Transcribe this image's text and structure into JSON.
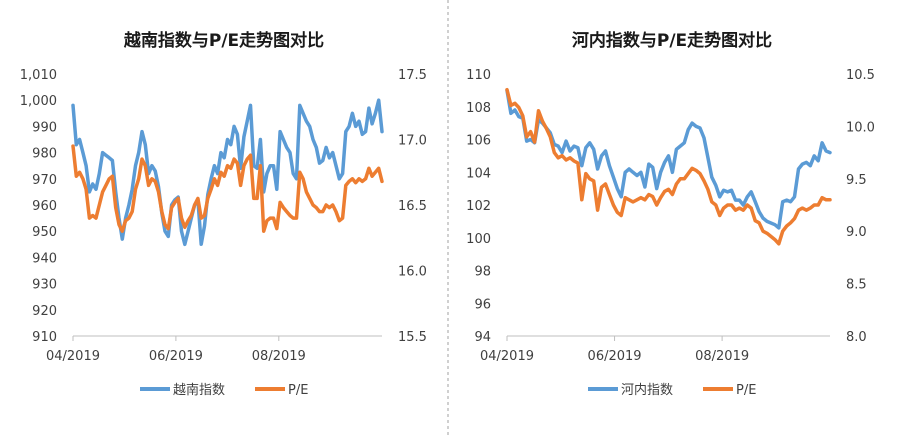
{
  "chart_data": [
    {
      "type": "line",
      "title": "越南指数与P/E走势图对比",
      "x_ticks": [
        "04/2019",
        "06/2019",
        "08/2019"
      ],
      "y_left": {
        "min": 910,
        "max": 1010,
        "step": 10,
        "ticks": [
          "910",
          "920",
          "930",
          "940",
          "950",
          "960",
          "970",
          "980",
          "990",
          "1,000",
          "1,010"
        ]
      },
      "y_right": {
        "min": 15.5,
        "max": 17.5,
        "step": 0.5,
        "ticks": [
          "15.5",
          "16.0",
          "16.5",
          "17.0",
          "17.5"
        ]
      },
      "legend_position": "bottom",
      "series": [
        {
          "name": "越南指数",
          "axis": "left",
          "color": "#5B9BD5",
          "values": [
            998,
            983,
            985,
            980,
            975,
            965,
            968,
            966,
            972,
            980,
            979,
            978,
            977,
            965,
            955,
            947,
            955,
            960,
            966,
            975,
            980,
            988,
            983,
            972,
            975,
            973,
            967,
            957,
            950,
            948,
            960,
            962,
            963,
            950,
            945,
            950,
            955,
            960,
            962,
            945,
            952,
            964,
            970,
            975,
            972,
            980,
            978,
            985,
            983,
            990,
            987,
            974,
            986,
            992,
            998,
            975,
            974,
            985,
            965,
            972,
            975,
            975,
            966,
            988,
            985,
            982,
            980,
            972,
            970,
            998,
            995,
            992,
            990,
            985,
            982,
            976,
            977,
            982,
            978,
            980,
            975,
            970,
            972,
            988,
            990,
            995,
            990,
            992,
            987,
            988,
            997,
            991,
            995,
            1000,
            988
          ]
        },
        {
          "name": "P/E",
          "axis": "right",
          "color": "#ED7D31",
          "values": [
            16.95,
            16.72,
            16.75,
            16.7,
            16.62,
            16.4,
            16.42,
            16.4,
            16.5,
            16.6,
            16.65,
            16.7,
            16.72,
            16.48,
            16.35,
            16.3,
            16.38,
            16.4,
            16.45,
            16.62,
            16.7,
            16.85,
            16.8,
            16.65,
            16.7,
            16.68,
            16.6,
            16.45,
            16.35,
            16.32,
            16.48,
            16.52,
            16.55,
            16.4,
            16.33,
            16.38,
            16.42,
            16.5,
            16.55,
            16.4,
            16.42,
            16.55,
            16.62,
            16.7,
            16.65,
            16.75,
            16.72,
            16.8,
            16.78,
            16.85,
            16.82,
            16.65,
            16.8,
            16.85,
            16.88,
            16.55,
            16.55,
            16.8,
            16.3,
            16.38,
            16.4,
            16.4,
            16.32,
            16.52,
            16.48,
            16.45,
            16.42,
            16.4,
            16.4,
            16.75,
            16.7,
            16.6,
            16.55,
            16.5,
            16.48,
            16.45,
            16.45,
            16.5,
            16.48,
            16.5,
            16.45,
            16.38,
            16.4,
            16.65,
            16.68,
            16.7,
            16.67,
            16.7,
            16.68,
            16.7,
            16.78,
            16.72,
            16.75,
            16.78,
            16.68
          ]
        }
      ]
    },
    {
      "type": "line",
      "title": "河内指数与P/E走势图对比",
      "x_ticks": [
        "04/2019",
        "06/2019",
        "08/2019"
      ],
      "y_left": {
        "min": 94,
        "max": 110,
        "step": 2,
        "ticks": [
          "94",
          "96",
          "98",
          "100",
          "102",
          "104",
          "106",
          "108",
          "110"
        ]
      },
      "y_right": {
        "min": 8.0,
        "max": 10.5,
        "step": 0.5,
        "ticks": [
          "8.0",
          "8.5",
          "9.0",
          "9.5",
          "10.0",
          "10.5"
        ]
      },
      "legend_position": "bottom",
      "series": [
        {
          "name": "河内指数",
          "axis": "left",
          "color": "#5B9BD5",
          "values": [
            109.0,
            107.6,
            107.8,
            107.4,
            107.3,
            105.9,
            106.0,
            105.8,
            107.2,
            107.0,
            106.7,
            106.4,
            105.7,
            105.6,
            105.2,
            105.9,
            105.3,
            105.6,
            105.5,
            104.4,
            105.5,
            105.8,
            105.4,
            104.2,
            105.0,
            105.3,
            104.4,
            103.7,
            103.0,
            102.5,
            104.0,
            104.2,
            104.0,
            103.8,
            104.0,
            103.1,
            104.5,
            104.3,
            103.0,
            104.0,
            104.6,
            105.0,
            104.0,
            105.4,
            105.6,
            105.8,
            106.6,
            107.0,
            106.8,
            106.7,
            106.1,
            104.9,
            103.7,
            103.2,
            102.5,
            102.9,
            102.8,
            102.9,
            102.3,
            102.3,
            102.0,
            102.5,
            102.8,
            102.2,
            101.6,
            101.2,
            101.0,
            100.9,
            100.8,
            100.6,
            102.2,
            102.3,
            102.2,
            102.5,
            104.2,
            104.5,
            104.6,
            104.4,
            105.0,
            104.7,
            105.8,
            105.3,
            105.2
          ],
          "x_end": 1.0
        },
        {
          "name": "P/E",
          "axis": "right",
          "color": "#ED7D31",
          "values": [
            10.35,
            10.2,
            10.22,
            10.18,
            10.1,
            9.9,
            9.95,
            9.85,
            10.15,
            10.05,
            9.98,
            9.9,
            9.75,
            9.7,
            9.72,
            9.68,
            9.7,
            9.67,
            9.65,
            9.3,
            9.55,
            9.5,
            9.48,
            9.2,
            9.42,
            9.45,
            9.35,
            9.25,
            9.18,
            9.15,
            9.32,
            9.3,
            9.28,
            9.3,
            9.32,
            9.3,
            9.35,
            9.33,
            9.25,
            9.32,
            9.38,
            9.4,
            9.35,
            9.45,
            9.5,
            9.5,
            9.55,
            9.6,
            9.58,
            9.55,
            9.48,
            9.4,
            9.28,
            9.25,
            9.15,
            9.22,
            9.25,
            9.25,
            9.2,
            9.22,
            9.2,
            9.25,
            9.22,
            9.1,
            9.08,
            9.0,
            8.98,
            8.95,
            8.92,
            8.88,
            9.0,
            9.05,
            9.08,
            9.12,
            9.2,
            9.22,
            9.2,
            9.22,
            9.25,
            9.25,
            9.32,
            9.3,
            9.3
          ]
        }
      ]
    }
  ]
}
